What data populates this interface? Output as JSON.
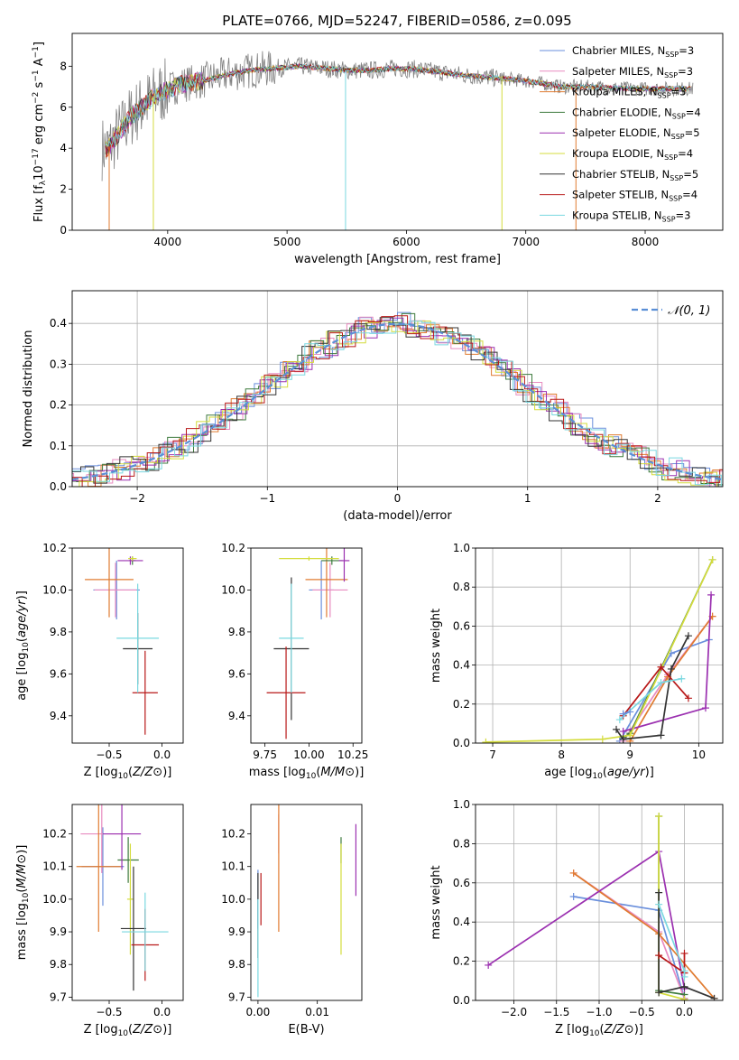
{
  "colors": {
    "Chabrier MILES": "#6a8fdc",
    "Salpeter MILES": "#e88bc0",
    "Kroupa MILES": "#e07b30",
    "Chabrier ELODIE": "#3d7a3d",
    "Salpeter ELODIE": "#9b30b0",
    "Kroupa ELODIE": "#d4dc3c",
    "Chabrier STELIB": "#333333",
    "Salpeter STELIB": "#b81818",
    "Kroupa STELIB": "#7ad8e0",
    "data": "#808080",
    "gauss": "#5b8fd6"
  },
  "chart_data": [
    {
      "id": "spectrum",
      "type": "line",
      "title": "PLATE=0766, MJD=52247, FIBERID=0586, z=0.095",
      "xlabel": "wavelength [Angstrom, rest frame]",
      "ylabel": "Flux [f_λ 10^-17 erg cm^-2 s^-1 A^-1]",
      "xlim": [
        3200,
        8650
      ],
      "ylim": [
        0,
        9.6
      ],
      "xticks": [
        4000,
        5000,
        6000,
        7000,
        8000
      ],
      "yticks": [
        0,
        2,
        4,
        6,
        8
      ],
      "legend_position": "right",
      "legend": [
        {
          "label": "Chabrier MILES, N_SSP=3",
          "key": "Chabrier MILES"
        },
        {
          "label": "Salpeter MILES, N_SSP=3",
          "key": "Salpeter MILES"
        },
        {
          "label": "Kroupa MILES, N_SSP=3",
          "key": "Kroupa MILES"
        },
        {
          "label": "Chabrier ELODIE, N_SSP=4",
          "key": "Chabrier ELODIE"
        },
        {
          "label": "Salpeter ELODIE, N_SSP=5",
          "key": "Salpeter ELODIE"
        },
        {
          "label": "Kroupa ELODIE, N_SSP=4",
          "key": "Kroupa ELODIE"
        },
        {
          "label": "Chabrier STELIB, N_SSP=5",
          "key": "Chabrier STELIB"
        },
        {
          "label": "Salpeter STELIB, N_SSP=4",
          "key": "Salpeter STELIB"
        },
        {
          "label": "Kroupa STELIB, N_SSP=3",
          "key": "Kroupa STELIB"
        }
      ],
      "continuum_x": [
        3500,
        3700,
        3900,
        4100,
        4300,
        4500,
        4700,
        4900,
        5100,
        5300,
        5500,
        5700,
        5900,
        6100,
        6300,
        6500,
        6700,
        6900,
        7100,
        7300,
        7500,
        7700,
        7900,
        8100,
        8300
      ],
      "continuum_y": [
        4.0,
        5.6,
        6.6,
        7.1,
        7.3,
        7.6,
        7.8,
        7.9,
        8.0,
        7.9,
        7.8,
        7.8,
        7.9,
        7.85,
        7.7,
        7.55,
        7.45,
        7.35,
        7.2,
        7.0,
        7.0,
        6.95,
        6.9,
        6.9,
        6.9
      ],
      "data_x_range": [
        3450,
        8400
      ]
    },
    {
      "id": "residuals",
      "type": "line",
      "xlabel": "(data-model)/error",
      "ylabel": "Normed distribution",
      "xlim": [
        -2.5,
        2.5
      ],
      "ylim": [
        0,
        0.48
      ],
      "xticks": [
        -2,
        -1,
        0,
        1,
        2
      ],
      "yticks": [
        0.0,
        0.1,
        0.2,
        0.3,
        0.4
      ],
      "grid": true,
      "legend_position": "top-right",
      "gauss_label": "𝒩(0, 1)"
    },
    {
      "id": "z_age",
      "type": "scatter",
      "xlabel": "Z [log10(Z/Z⊙)]",
      "ylabel": "age [log10(age/yr)]",
      "xlim": [
        -0.85,
        0.2
      ],
      "ylim": [
        9.27,
        10.2
      ],
      "xticks": [
        -0.5,
        0.0
      ],
      "yticks": [
        9.4,
        9.6,
        9.8,
        10.0,
        10.2
      ],
      "points": [
        {
          "key": "Chabrier MILES",
          "x": -0.43,
          "y": 10.0,
          "xerr": 0.22,
          "yerr": 0.14
        },
        {
          "key": "Salpeter MILES",
          "x": -0.44,
          "y": 10.0,
          "xerr": 0.2,
          "yerr": 0.13
        },
        {
          "key": "Kroupa MILES",
          "x": -0.5,
          "y": 10.05,
          "xerr": 0.23,
          "yerr": 0.18
        },
        {
          "key": "Chabrier ELODIE",
          "x": -0.28,
          "y": 10.14,
          "xerr": 0.03,
          "yerr": 0.02
        },
        {
          "key": "Salpeter ELODIE",
          "x": -0.3,
          "y": 10.14,
          "xerr": 0.12,
          "yerr": 0.02
        },
        {
          "key": "Kroupa ELODIE",
          "x": -0.28,
          "y": 10.15,
          "xerr": 0.04,
          "yerr": 0.01
        },
        {
          "key": "Chabrier STELIB",
          "x": -0.23,
          "y": 9.72,
          "xerr": 0.14,
          "yerr": 0.17
        },
        {
          "key": "Salpeter STELIB",
          "x": -0.16,
          "y": 9.51,
          "xerr": 0.12,
          "yerr": 0.2
        },
        {
          "key": "Kroupa STELIB",
          "x": -0.23,
          "y": 9.77,
          "xerr": 0.2,
          "yerr": 0.26
        }
      ]
    },
    {
      "id": "mass_age",
      "type": "scatter",
      "xlabel": "mass [log10(M/M⊙)]",
      "ylabel": "",
      "xlim": [
        9.67,
        10.3
      ],
      "ylim": [
        9.27,
        10.2
      ],
      "xticks": [
        9.75,
        10.0,
        10.25
      ],
      "yticks": [
        9.4,
        9.6,
        9.8,
        10.0,
        10.2
      ],
      "points": [
        {
          "key": "Chabrier MILES",
          "x": 10.07,
          "y": 10.0,
          "xerr": 0.07,
          "yerr": 0.14
        },
        {
          "key": "Salpeter MILES",
          "x": 10.12,
          "y": 10.0,
          "xerr": 0.1,
          "yerr": 0.13
        },
        {
          "key": "Kroupa MILES",
          "x": 10.1,
          "y": 10.05,
          "xerr": 0.12,
          "yerr": 0.18
        },
        {
          "key": "Chabrier ELODIE",
          "x": 10.13,
          "y": 10.14,
          "xerr": 0.06,
          "yerr": 0.02
        },
        {
          "key": "Salpeter ELODIE",
          "x": 10.2,
          "y": 10.14,
          "xerr": 0.03,
          "yerr": 0.1
        },
        {
          "key": "Kroupa ELODIE",
          "x": 10.0,
          "y": 10.15,
          "xerr": 0.17,
          "yerr": 0.01
        },
        {
          "key": "Chabrier STELIB",
          "x": 9.9,
          "y": 9.72,
          "xerr": 0.1,
          "yerr": 0.34
        },
        {
          "key": "Salpeter STELIB",
          "x": 9.87,
          "y": 9.51,
          "xerr": 0.11,
          "yerr": 0.22
        },
        {
          "key": "Kroupa STELIB",
          "x": 9.9,
          "y": 9.77,
          "xerr": 0.07,
          "yerr": 0.26
        }
      ]
    },
    {
      "id": "weight_age",
      "type": "line",
      "xlabel": "age [log10(age/yr)]",
      "ylabel": "mass weight",
      "xlim": [
        6.75,
        10.35
      ],
      "ylim": [
        0,
        1.0
      ],
      "xticks": [
        7,
        8,
        9,
        10
      ],
      "yticks": [
        0.0,
        0.2,
        0.4,
        0.6,
        0.8,
        1.0
      ],
      "grid": true,
      "series": [
        {
          "key": "Chabrier MILES",
          "x": [
            8.85,
            9.6,
            10.15
          ],
          "y": [
            0.01,
            0.46,
            0.53
          ]
        },
        {
          "key": "Salpeter MILES",
          "x": [
            8.9,
            9.55,
            10.2
          ],
          "y": [
            0.01,
            0.35,
            0.65
          ]
        },
        {
          "key": "Kroupa MILES",
          "x": [
            9.0,
            9.55,
            10.2
          ],
          "y": [
            0.01,
            0.34,
            0.65
          ]
        },
        {
          "key": "Chabrier ELODIE",
          "x": [
            8.9,
            9.0,
            10.2
          ],
          "y": [
            0.03,
            0.05,
            0.94
          ]
        },
        {
          "key": "Salpeter ELODIE",
          "x": [
            8.9,
            10.1,
            10.18
          ],
          "y": [
            0.06,
            0.18,
            0.76
          ]
        },
        {
          "key": "Kroupa ELODIE",
          "x": [
            6.9,
            8.6,
            9.0,
            10.2
          ],
          "y": [
            0.005,
            0.02,
            0.04,
            0.94
          ]
        },
        {
          "key": "Chabrier STELIB",
          "x": [
            8.8,
            8.9,
            9.45,
            9.6,
            9.85
          ],
          "y": [
            0.07,
            0.02,
            0.04,
            0.38,
            0.55
          ]
        },
        {
          "key": "Salpeter STELIB",
          "x": [
            8.9,
            9.45,
            9.85
          ],
          "y": [
            0.14,
            0.39,
            0.23
          ]
        },
        {
          "key": "Kroupa STELIB",
          "x": [
            8.85,
            9.45,
            9.75
          ],
          "y": [
            0.12,
            0.31,
            0.33
          ]
        },
        {
          "key": "Chabrier MILES",
          "x": [
            8.9,
            9.0
          ],
          "y": [
            0.15,
            0.16
          ]
        }
      ]
    },
    {
      "id": "z_mass",
      "type": "scatter",
      "xlabel": "Z [log10(Z/Z⊙)]",
      "ylabel": "mass [log10(M/M⊙)]",
      "xlim": [
        -0.85,
        0.2
      ],
      "ylim": [
        9.69,
        10.29
      ],
      "xticks": [
        -0.5,
        0.0
      ],
      "yticks": [
        9.7,
        9.8,
        9.9,
        10.0,
        10.1,
        10.2
      ],
      "points": [
        {
          "key": "Chabrier MILES",
          "x": -0.56,
          "y": 10.1,
          "xerr": 0.2,
          "yerr": 0.12
        },
        {
          "key": "Salpeter MILES",
          "x": -0.57,
          "y": 10.2,
          "xerr": 0.2,
          "yerr": 0.12
        },
        {
          "key": "Kroupa MILES",
          "x": -0.6,
          "y": 10.1,
          "xerr": 0.21,
          "yerr": 0.2
        },
        {
          "key": "Chabrier ELODIE",
          "x": -0.32,
          "y": 10.12,
          "xerr": 0.1,
          "yerr": 0.07
        },
        {
          "key": "Salpeter ELODIE",
          "x": -0.38,
          "y": 10.2,
          "xerr": 0.18,
          "yerr": 0.11
        },
        {
          "key": "Kroupa ELODIE",
          "x": -0.3,
          "y": 10.0,
          "xerr": 0.03,
          "yerr": 0.17
        },
        {
          "key": "Chabrier STELIB",
          "x": -0.27,
          "y": 9.91,
          "xerr": 0.12,
          "yerr": 0.19
        },
        {
          "key": "Salpeter STELIB",
          "x": -0.16,
          "y": 9.86,
          "xerr": 0.13,
          "yerr": 0.11
        },
        {
          "key": "Kroupa STELIB",
          "x": -0.16,
          "y": 9.9,
          "xerr": 0.22,
          "yerr": 0.12
        }
      ]
    },
    {
      "id": "ebv_mass",
      "type": "scatter",
      "xlabel": "E(B-V)",
      "ylabel": "",
      "xlim": [
        -0.0012,
        0.0175
      ],
      "ylim": [
        9.69,
        10.29
      ],
      "xticks": [
        0.0,
        0.01
      ],
      "yticks": [
        9.7,
        9.8,
        9.9,
        10.0,
        10.1,
        10.2
      ],
      "points": [
        {
          "key": "Chabrier MILES",
          "x": 0.0,
          "y": 10.0,
          "xerr": 0,
          "yerr": 0.09
        },
        {
          "key": "Salpeter MILES",
          "x": 0.0035,
          "y": 10.2,
          "xerr": 0,
          "yerr": 0.06
        },
        {
          "key": "Kroupa MILES",
          "x": 0.0035,
          "y": 10.1,
          "xerr": 0,
          "yerr": 0.2
        },
        {
          "key": "Chabrier ELODIE",
          "x": 0.014,
          "y": 10.15,
          "xerr": 0,
          "yerr": 0.04
        },
        {
          "key": "Salpeter ELODIE",
          "x": 0.0165,
          "y": 10.12,
          "xerr": 0,
          "yerr": 0.11
        },
        {
          "key": "Kroupa ELODIE",
          "x": 0.014,
          "y": 10.0,
          "xerr": 0,
          "yerr": 0.17
        },
        {
          "key": "Chabrier STELIB",
          "x": 0.0,
          "y": 9.95,
          "xerr": 0,
          "yerr": 0.13
        },
        {
          "key": "Salpeter STELIB",
          "x": 0.0005,
          "y": 10.0,
          "xerr": 0,
          "yerr": 0.08
        },
        {
          "key": "Kroupa STELIB",
          "x": 0.0,
          "y": 9.85,
          "xerr": 0,
          "yerr": 0.15
        }
      ]
    },
    {
      "id": "weight_z",
      "type": "line",
      "xlabel": "Z [log10(Z/Z⊙)]",
      "ylabel": "mass weight",
      "xlim": [
        -2.45,
        0.45
      ],
      "ylim": [
        0,
        1.0
      ],
      "xticks": [
        -2.0,
        -1.5,
        -1.0,
        -0.5,
        0.0
      ],
      "yticks": [
        0.0,
        0.2,
        0.4,
        0.6,
        0.8,
        1.0
      ],
      "grid": true,
      "series": [
        {
          "key": "Chabrier MILES",
          "x": [
            -1.3,
            -0.3,
            0.0
          ],
          "y": [
            0.53,
            0.46,
            0.01
          ]
        },
        {
          "key": "Salpeter MILES",
          "x": [
            -1.3,
            -0.3,
            0.0
          ],
          "y": [
            0.65,
            0.35,
            0.01
          ]
        },
        {
          "key": "Kroupa MILES",
          "x": [
            -1.3,
            -0.3,
            0.35
          ],
          "y": [
            0.65,
            0.34,
            0.01
          ]
        },
        {
          "key": "Chabrier ELODIE",
          "x": [
            -0.3,
            -0.3,
            0.0
          ],
          "y": [
            0.94,
            0.05,
            0.03
          ]
        },
        {
          "key": "Salpeter ELODIE",
          "x": [
            -2.3,
            -0.3,
            0.0
          ],
          "y": [
            0.18,
            0.76,
            0.06
          ]
        },
        {
          "key": "Kroupa ELODIE",
          "x": [
            -0.3,
            -0.3,
            0.0
          ],
          "y": [
            0.94,
            0.04,
            0.005
          ]
        },
        {
          "key": "Chabrier STELIB",
          "x": [
            -0.3,
            -0.3,
            0.0,
            0.35
          ],
          "y": [
            0.55,
            0.04,
            0.07,
            0.01
          ]
        },
        {
          "key": "Salpeter STELIB",
          "x": [
            -0.3,
            0.0,
            0.0
          ],
          "y": [
            0.23,
            0.14,
            0.24
          ]
        },
        {
          "key": "Kroupa STELIB",
          "x": [
            -0.3,
            0.0,
            0.0
          ],
          "y": [
            0.49,
            0.15,
            0.12
          ]
        }
      ]
    }
  ]
}
